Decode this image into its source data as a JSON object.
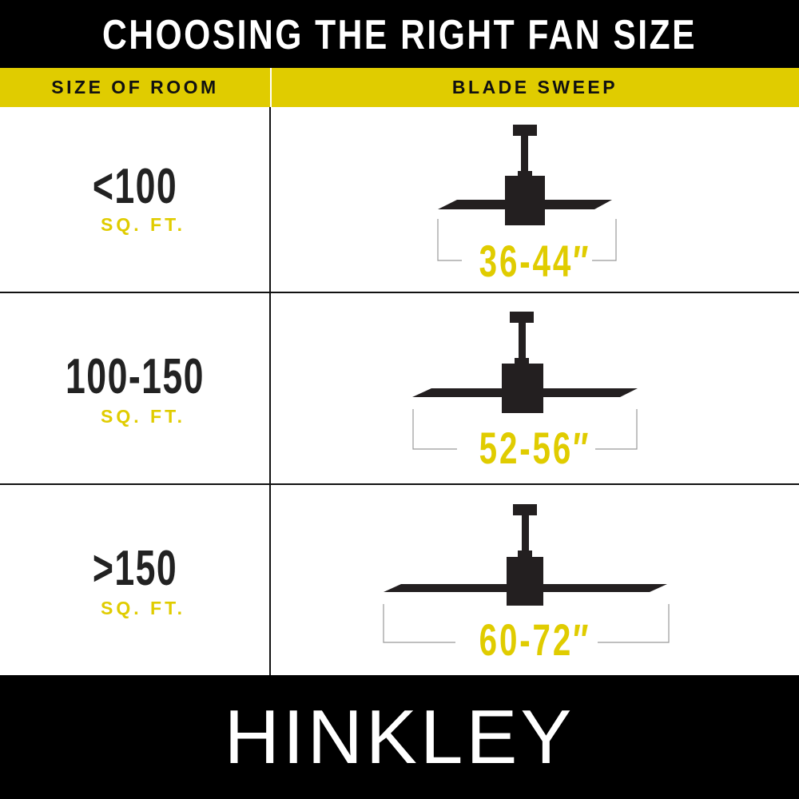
{
  "title": "CHOOSING THE RIGHT FAN SIZE",
  "headers": {
    "room": "SIZE OF ROOM",
    "sweep": "BLADE SWEEP"
  },
  "rows": [
    {
      "room": "<100",
      "unit": "SQ. FT.",
      "sweep": "36-44″"
    },
    {
      "room": "100-150",
      "unit": "SQ. FT.",
      "sweep": "52-56″"
    },
    {
      "room": ">150",
      "unit": "SQ. FT.",
      "sweep": "60-72″"
    }
  ],
  "brand": "HINKLEY",
  "colors": {
    "accent": "#e0cc00",
    "bar": "#000000",
    "fan": "#231f20"
  }
}
